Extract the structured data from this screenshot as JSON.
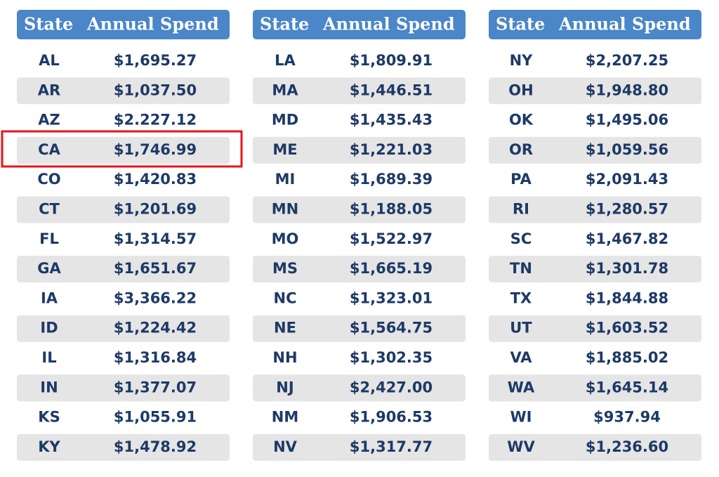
{
  "tables": [
    {
      "header": [
        "State",
        "Annual Spend"
      ],
      "rows": [
        [
          "AL",
          "$1,695.27"
        ],
        [
          "AR",
          "$1,037.50"
        ],
        [
          "AZ",
          "$2.227.12"
        ],
        [
          "CA",
          "$1,746.99"
        ],
        [
          "CO",
          "$1,420.83"
        ],
        [
          "CT",
          "$1,201.69"
        ],
        [
          "FL",
          "$1,314.57"
        ],
        [
          "GA",
          "$1,651.67"
        ],
        [
          "IA",
          "$3,366.22"
        ],
        [
          "ID",
          "$1,224.42"
        ],
        [
          "IL",
          "$1,316.84"
        ],
        [
          "IN",
          "$1,377.07"
        ],
        [
          "KS",
          "$1,055.91"
        ],
        [
          "KY",
          "$1,478.92"
        ]
      ]
    },
    {
      "header": [
        "State",
        "Annual Spend"
      ],
      "rows": [
        [
          "LA",
          "$1,809.91"
        ],
        [
          "MA",
          "$1,446.51"
        ],
        [
          "MD",
          "$1,435.43"
        ],
        [
          "ME",
          "$1,221.03"
        ],
        [
          "MI",
          "$1,689.39"
        ],
        [
          "MN",
          "$1,188.05"
        ],
        [
          "MO",
          "$1,522.97"
        ],
        [
          "MS",
          "$1,665.19"
        ],
        [
          "NC",
          "$1,323.01"
        ],
        [
          "NE",
          "$1,564.75"
        ],
        [
          "NH",
          "$1,302.35"
        ],
        [
          "NJ",
          "$2,427.00"
        ],
        [
          "NM",
          "$1,906.53"
        ],
        [
          "NV",
          "$1,317.77"
        ]
      ]
    },
    {
      "header": [
        "State",
        "Annual Spend"
      ],
      "rows": [
        [
          "NY",
          "$2,207.25"
        ],
        [
          "OH",
          "$1,948.80"
        ],
        [
          "OK",
          "$1,495.06"
        ],
        [
          "OR",
          "$1,059.56"
        ],
        [
          "PA",
          "$2,091.43"
        ],
        [
          "RI",
          "$1,280.57"
        ],
        [
          "SC",
          "$1,467.82"
        ],
        [
          "TN",
          "$1,301.78"
        ],
        [
          "TX",
          "$1,844.88"
        ],
        [
          "UT",
          "$1,603.52"
        ],
        [
          "VA",
          "$1,885.02"
        ],
        [
          "WA",
          "$1,645.14"
        ],
        [
          "WI",
          "$937.94"
        ],
        [
          "WV",
          "$1,236.60"
        ]
      ]
    }
  ]
}
